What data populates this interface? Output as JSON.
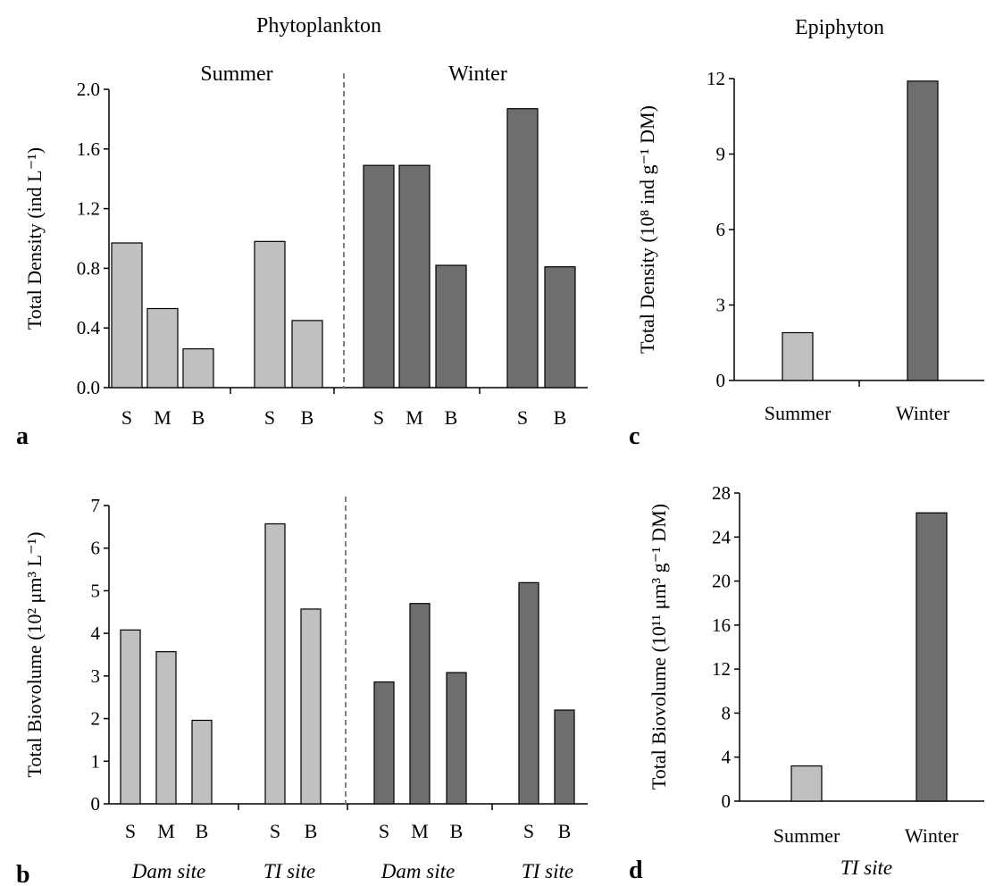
{
  "headers": {
    "phytoplankton": "Phytoplankton",
    "epiphyton": "Epiphyton",
    "summer": "Summer",
    "winter": "Winter"
  },
  "panel_labels": [
    "a",
    "b",
    "c",
    "d"
  ],
  "site_labels": [
    "Dam site",
    "TI site",
    "Dam site",
    "TI site"
  ],
  "epiphyton_site_label": "TI site",
  "colors": {
    "summer_bar": "#c0c0c0",
    "winter_bar": "#6e6e6e",
    "divider": "#808080"
  },
  "chart_data": [
    {
      "id": "a",
      "type": "bar",
      "ylabel": "Total Density (ind L⁻¹)",
      "ylim": [
        0,
        2.0
      ],
      "yticks": [
        "0.0",
        "0.4",
        "0.8",
        "1.2",
        "1.6",
        "2.0"
      ],
      "categories": [
        "S",
        "M",
        "B",
        "S",
        "B",
        "S",
        "M",
        "B",
        "S",
        "B"
      ],
      "groups": [
        "Summer",
        "Summer",
        "Summer",
        "Summer",
        "Summer",
        "Winter",
        "Winter",
        "Winter",
        "Winter",
        "Winter"
      ],
      "values": [
        0.97,
        0.53,
        0.26,
        0.98,
        0.45,
        1.49,
        1.49,
        0.82,
        1.87,
        0.81
      ]
    },
    {
      "id": "b",
      "type": "bar",
      "ylabel": "Total Biovolume (10² μm³ L⁻¹)",
      "ylim": [
        0,
        7
      ],
      "yticks": [
        "0",
        "1",
        "2",
        "3",
        "4",
        "5",
        "6",
        "7"
      ],
      "categories": [
        "S",
        "M",
        "B",
        "S",
        "B",
        "S",
        "M",
        "B",
        "S",
        "B"
      ],
      "groups": [
        "Summer",
        "Summer",
        "Summer",
        "Summer",
        "Summer",
        "Winter",
        "Winter",
        "Winter",
        "Winter",
        "Winter"
      ],
      "values": [
        4.08,
        3.57,
        1.96,
        6.57,
        4.57,
        2.86,
        4.7,
        3.08,
        5.19,
        2.2
      ]
    },
    {
      "id": "c",
      "type": "bar",
      "ylabel": "Total Density (10⁸ ind g⁻¹ DM)",
      "ylim": [
        0,
        12
      ],
      "yticks": [
        "0",
        "3",
        "6",
        "9",
        "12"
      ],
      "categories": [
        "Summer",
        "Winter"
      ],
      "values": [
        1.9,
        11.9
      ]
    },
    {
      "id": "d",
      "type": "bar",
      "ylabel": "Total Biovolume (10¹¹ μm³ g⁻¹ DM)",
      "ylim": [
        0,
        28
      ],
      "yticks": [
        "0",
        "4",
        "8",
        "12",
        "16",
        "20",
        "24",
        "28"
      ],
      "categories": [
        "Summer",
        "Winter"
      ],
      "values": [
        3.2,
        26.2
      ]
    }
  ]
}
